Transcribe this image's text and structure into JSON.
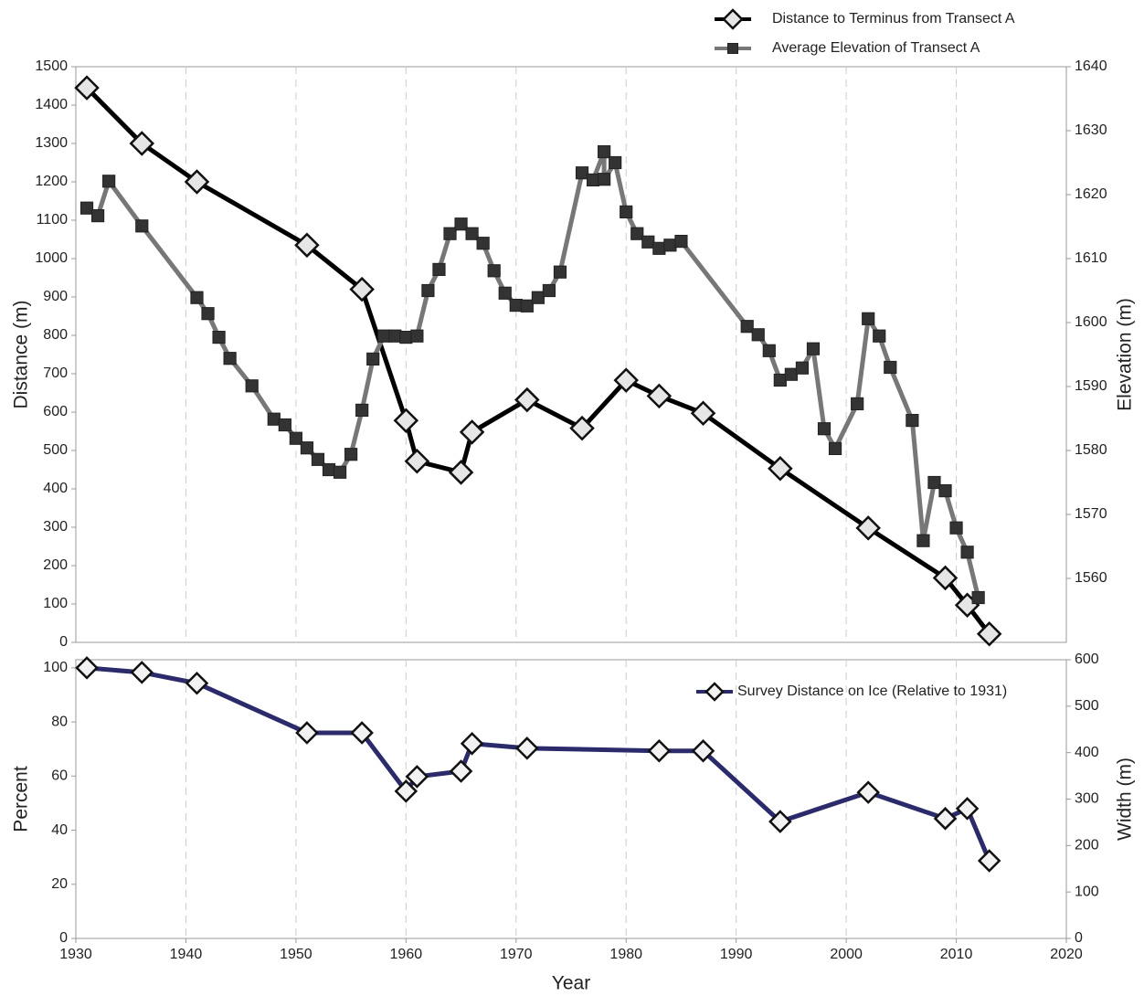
{
  "chart_data": [
    {
      "type": "line",
      "ylabel": "Distance (m)",
      "y2label": "Elevation (m)",
      "ylim": [
        0,
        1500
      ],
      "yticks": [
        0,
        100,
        200,
        300,
        400,
        500,
        600,
        700,
        800,
        900,
        1000,
        1100,
        1200,
        1300,
        1400,
        1500
      ],
      "y2lim": [
        1550,
        1640
      ],
      "y2ticks": [
        1560,
        1570,
        1580,
        1590,
        1600,
        1610,
        1620,
        1630,
        1640
      ],
      "legend": "above",
      "series": [
        {
          "name": "Distance to Terminus from Transect A",
          "color": "#000000",
          "marker": "diamond",
          "marker_color": "#e6e6e6",
          "x": [
            1931,
            1936,
            1941,
            1951,
            1956,
            1960,
            1961,
            1965,
            1966,
            1971,
            1976,
            1980,
            1983,
            1987,
            1994,
            2002,
            2009,
            2011,
            2013
          ],
          "values": [
            1445,
            1300,
            1200,
            1035,
            920,
            578,
            472,
            443,
            548,
            632,
            558,
            683,
            642,
            597,
            453,
            298,
            168,
            97,
            22
          ]
        },
        {
          "name": "Average Elevation of Transect A",
          "color": "#777777",
          "marker": "square",
          "marker_color": "#333333",
          "axis": "y2",
          "x": [
            1931,
            1932,
            1933,
            1936,
            1941,
            1942,
            1943,
            1944,
            1946,
            1948,
            1949,
            1950,
            1951,
            1952,
            1953,
            1954,
            1955,
            1956,
            1957,
            1958,
            1959,
            1960,
            1961,
            1962,
            1963,
            1964,
            1965,
            1966,
            1967,
            1968,
            1969,
            1970,
            1971,
            1972,
            1973,
            1974,
            1976,
            1977,
            1978,
            1978,
            1979,
            1980,
            1981,
            1982,
            1983,
            1984,
            1985,
            1991,
            1992,
            1993,
            1994,
            1995,
            1996,
            1997,
            1998,
            1999,
            2001,
            2002,
            2003,
            2004,
            2006,
            2007,
            2008,
            2009,
            2010,
            2011,
            2012
          ],
          "values": [
            1617.9,
            1616.7,
            1622.1,
            1615.1,
            1603.9,
            1601.4,
            1597.7,
            1594.4,
            1590.1,
            1584.9,
            1584,
            1581.9,
            1580.4,
            1578.6,
            1577,
            1576.6,
            1579.4,
            1586.3,
            1594.3,
            1597.9,
            1597.9,
            1597.7,
            1597.9,
            1605,
            1608.3,
            1613.9,
            1615.4,
            1613.9,
            1612.4,
            1608.1,
            1604.6,
            1602.7,
            1602.6,
            1603.9,
            1605,
            1607.9,
            1623.4,
            1622.3,
            1626.7,
            1622.4,
            1625,
            1617.3,
            1613.9,
            1612.6,
            1611.6,
            1612.1,
            1612.7,
            1599.4,
            1598.1,
            1595.6,
            1591,
            1591.9,
            1592.9,
            1595.9,
            1583.4,
            1580.3,
            1587.3,
            1600.6,
            1597.9,
            1593,
            1584.7,
            1565.9,
            1575,
            1573.7,
            1567.9,
            1564.1,
            1557
          ]
        }
      ]
    },
    {
      "type": "line",
      "xlabel": "Year",
      "ylabel": "Percent",
      "y2label": "Width (m)",
      "xlim": [
        1930,
        2020
      ],
      "xticks": [
        1930,
        1940,
        1950,
        1960,
        1970,
        1980,
        1990,
        2000,
        2010,
        2020
      ],
      "ylim": [
        0,
        103
      ],
      "yticks": [
        0,
        20,
        40,
        60,
        80,
        100
      ],
      "y2lim": [
        0,
        600
      ],
      "y2ticks": [
        0,
        100,
        200,
        300,
        400,
        500,
        600
      ],
      "grid": true,
      "legend": "upper right",
      "series": [
        {
          "name": "Survey Distance on Ice (Relative to 1931)",
          "color": "#2b2b6b",
          "marker": "diamond",
          "marker_color": "#f2f2f2",
          "x": [
            1931,
            1936,
            1941,
            1951,
            1956,
            1960,
            1961,
            1965,
            1966,
            1971,
            1983,
            1987,
            1994,
            2002,
            2009,
            2011,
            2013
          ],
          "values": [
            100,
            98.3,
            94.3,
            76,
            76,
            54.4,
            59.8,
            61.8,
            72,
            70.3,
            69.3,
            69.3,
            43.2,
            54,
            44.3,
            48,
            28.7
          ]
        }
      ]
    }
  ]
}
